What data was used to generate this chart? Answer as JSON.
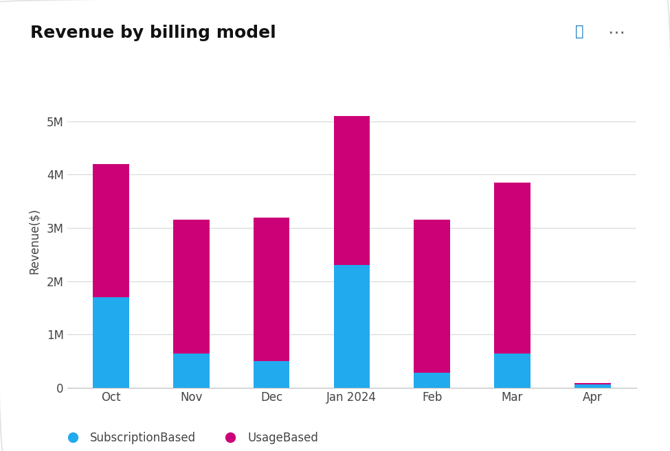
{
  "categories": [
    "Oct",
    "Nov",
    "Dec",
    "Jan 2024",
    "Feb",
    "Mar",
    "Apr"
  ],
  "subscription_based": [
    1.7,
    0.65,
    0.5,
    2.3,
    0.28,
    0.65,
    0.07
  ],
  "usage_based": [
    2.5,
    2.5,
    2.7,
    2.8,
    2.87,
    3.2,
    0.02
  ],
  "subscription_color": "#22AAEE",
  "usage_color": "#CC0077",
  "title": "Revenue by billing model",
  "ylabel": "Revenue($)",
  "ylim": [
    0,
    5.5
  ],
  "yticks": [
    0,
    1,
    2,
    3,
    4,
    5
  ],
  "ytick_labels": [
    "0",
    "1M",
    "2M",
    "3M",
    "4M",
    "5M"
  ],
  "legend_subscription": "SubscriptionBased",
  "legend_usage": "UsageBased",
  "background_color": "#ffffff",
  "grid_color": "#d8d8d8",
  "title_fontsize": 18,
  "axis_fontsize": 12,
  "tick_fontsize": 12,
  "legend_fontsize": 12,
  "border_color": "#e0e0e0",
  "bar_width": 0.45
}
